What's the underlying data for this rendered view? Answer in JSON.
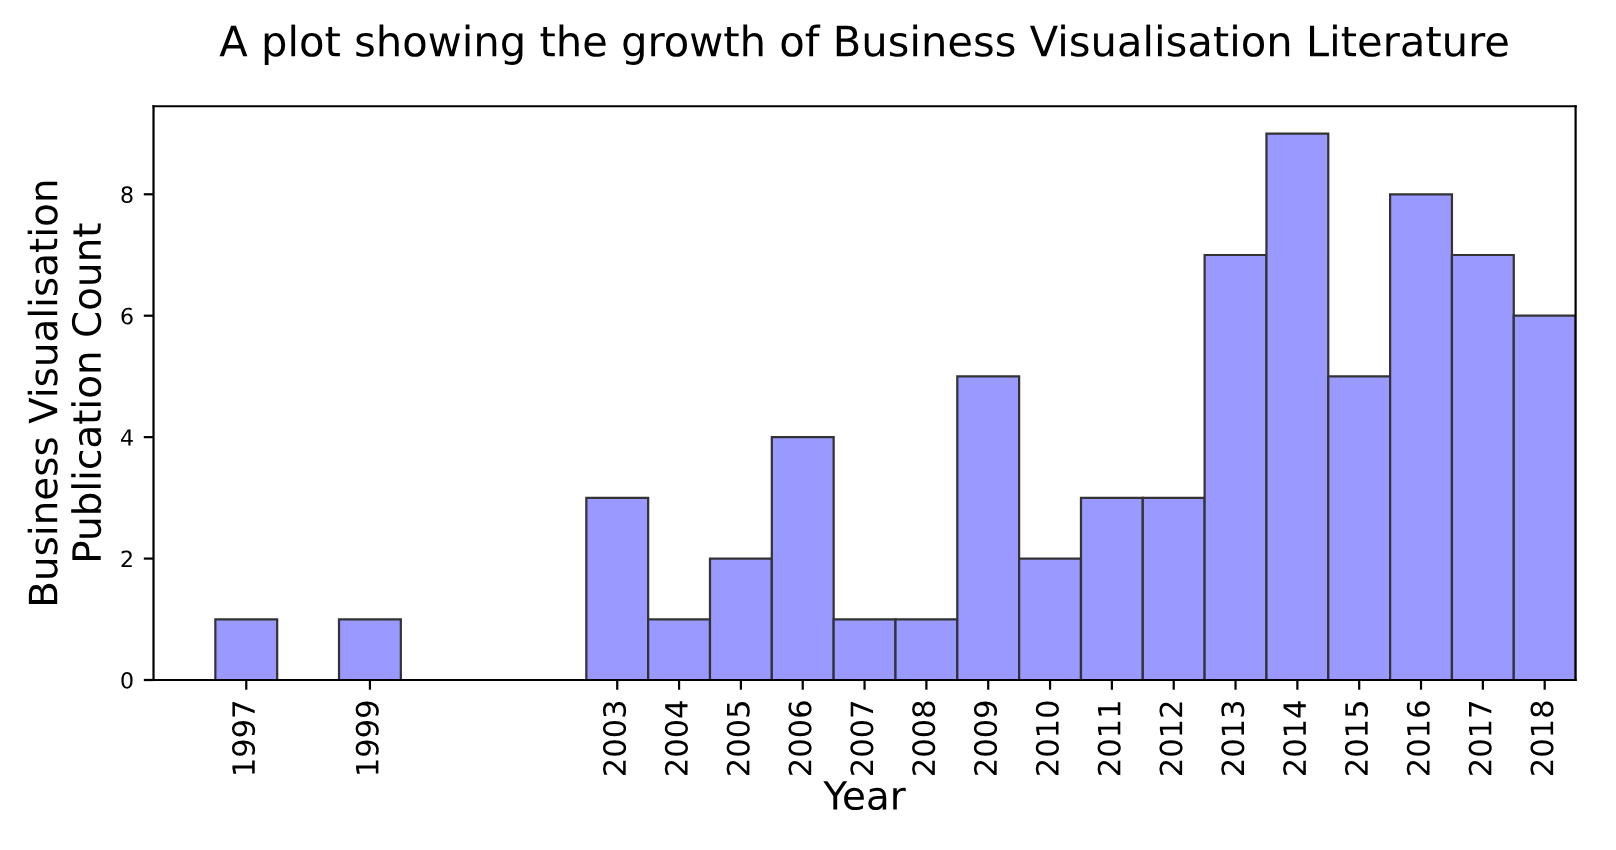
{
  "chart_data": {
    "type": "bar",
    "title": "A plot showing the growth of Business Visualisation Literature",
    "xlabel": "Year",
    "ylabel": "Business Visualisation\nPublication Count",
    "x": [
      1997,
      1999,
      2003,
      2004,
      2005,
      2006,
      2007,
      2008,
      2009,
      2010,
      2011,
      2012,
      2013,
      2014,
      2015,
      2016,
      2017,
      2018
    ],
    "values": [
      1,
      1,
      3,
      1,
      2,
      4,
      1,
      1,
      5,
      2,
      3,
      3,
      7,
      9,
      5,
      8,
      7,
      6
    ],
    "color": "#9999ff",
    "xlim": [
      1995.5,
      2018.5
    ],
    "xticks": [
      1997,
      1999,
      2003,
      2004,
      2005,
      2006,
      2007,
      2008,
      2009,
      2010,
      2011,
      2012,
      2013,
      2014,
      2015,
      2016,
      2017,
      2018
    ],
    "ylim": [
      0,
      9.45
    ],
    "yticks": [
      0,
      2,
      4,
      6,
      8
    ],
    "grid": false
  }
}
